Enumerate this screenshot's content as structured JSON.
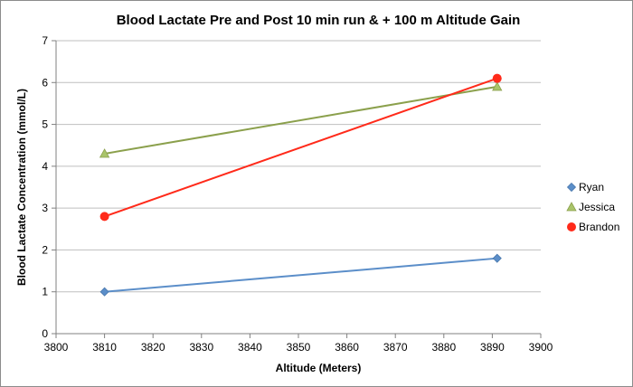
{
  "chart_data": {
    "type": "scatter",
    "title": "Blood Lactate Pre and Post 10 min run & + 100 m Altitude Gain",
    "xlabel": "Altitude (Meters)",
    "ylabel": "Blood Lactate Concentration (mmol/L)",
    "xlim": [
      3800,
      3900
    ],
    "ylim": [
      0,
      7
    ],
    "xticks": [
      3800,
      3810,
      3820,
      3830,
      3840,
      3850,
      3860,
      3870,
      3880,
      3890,
      3900
    ],
    "yticks": [
      0,
      1,
      2,
      3,
      4,
      5,
      6,
      7
    ],
    "grid": "horizontal",
    "legend_position": "right",
    "series": [
      {
        "name": "Ryan",
        "marker": "diamond",
        "color": "#5b8ec9",
        "x": [
          3810,
          3891
        ],
        "y": [
          1.0,
          1.8
        ]
      },
      {
        "name": "Jessica",
        "marker": "triangle",
        "color": "#8ba04c",
        "x": [
          3810,
          3891
        ],
        "y": [
          4.3,
          5.9
        ]
      },
      {
        "name": "Brandon",
        "marker": "circle",
        "color": "#ff2a1a",
        "x": [
          3810,
          3891
        ],
        "y": [
          2.8,
          6.1
        ]
      }
    ]
  }
}
